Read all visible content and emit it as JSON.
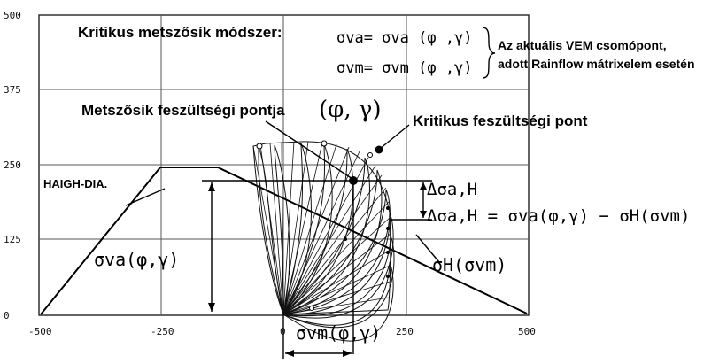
{
  "axis": {
    "y_ticks": [
      "500",
      "375",
      "250",
      "125",
      "0"
    ],
    "x_ticks": [
      "-500",
      "-250",
      "0",
      "250",
      "500"
    ]
  },
  "header": {
    "method_title": "Kritikus metszősík módszer:",
    "formula_va": "σva= σva (φ ,γ)",
    "formula_vm": "σvm= σvm (φ ,γ)",
    "note_line1": "Az aktuális VEM csomópont,",
    "note_line2": "adott Rainflow mátrixelem esetén"
  },
  "labels": {
    "cut_plane_point": "Metszősík feszültségi pontja",
    "cut_plane_args": "(φ, γ)",
    "critical_point": "Kritikus feszültségi pont",
    "haigh": "HAIGH-DIA.",
    "delta_sigma": "Δσa,H",
    "delta_formula": "Δσa,H = σva(φ,γ) − σH(σvm)",
    "sigma_va": "σva(φ,γ)",
    "sigma_h": "σH(σvm)",
    "sigma_vm": "σvm(φ,γ)"
  }
}
